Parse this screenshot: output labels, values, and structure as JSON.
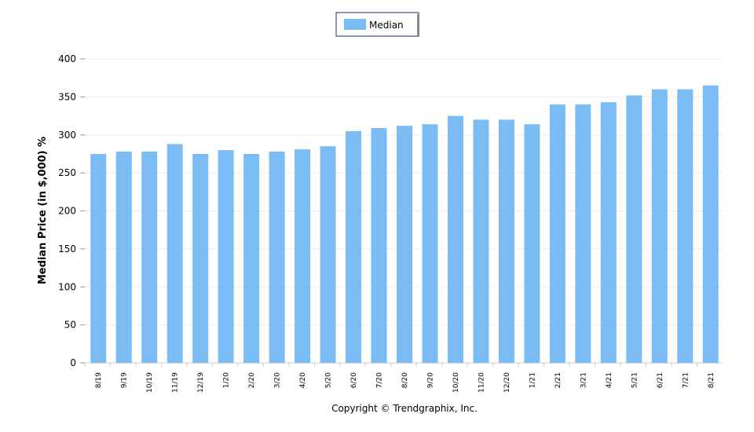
{
  "chart_data": {
    "type": "bar",
    "title": "",
    "xlabel": "",
    "ylabel": "Median Price (in $,000) %",
    "ylim": [
      0,
      400
    ],
    "yticks": [
      0,
      50,
      100,
      150,
      200,
      250,
      300,
      350,
      400
    ],
    "grid": true,
    "legend_placement": "top-center",
    "categories": [
      "8/19",
      "9/19",
      "10/19",
      "11/19",
      "12/19",
      "1/20",
      "2/20",
      "3/20",
      "4/20",
      "5/20",
      "6/20",
      "7/20",
      "8/20",
      "9/20",
      "10/20",
      "11/20",
      "12/20",
      "1/21",
      "2/21",
      "3/21",
      "4/21",
      "5/21",
      "6/21",
      "7/21",
      "8/21"
    ],
    "series": [
      {
        "name": "Median",
        "color": "#7bbcf5",
        "values": [
          275,
          278,
          278,
          288,
          275,
          280,
          275,
          278,
          281,
          285,
          305,
          309,
          312,
          314,
          325,
          320,
          320,
          314,
          340,
          340,
          343,
          352,
          360,
          360,
          365
        ]
      }
    ]
  },
  "footer": {
    "copyright": "Copyright © Trendgraphix, Inc."
  }
}
